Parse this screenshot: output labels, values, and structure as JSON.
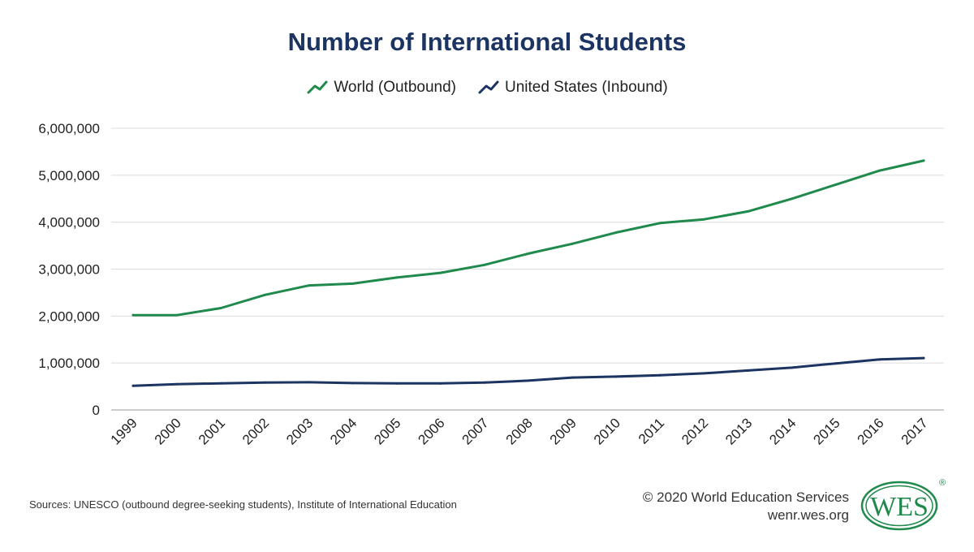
{
  "chart_data": {
    "type": "line",
    "title": "Number of International Students",
    "categories": [
      "1999",
      "2000",
      "2001",
      "2002",
      "2003",
      "2004",
      "2005",
      "2006",
      "2007",
      "2008",
      "2009",
      "2010",
      "2011",
      "2012",
      "2013",
      "2014",
      "2015",
      "2016",
      "2017"
    ],
    "series": [
      {
        "name": "World (Outbound)",
        "color": "#1f8a4c",
        "values": [
          2020000,
          2020000,
          2170000,
          2450000,
          2650000,
          2690000,
          2820000,
          2920000,
          3090000,
          3330000,
          3540000,
          3780000,
          3980000,
          4060000,
          4230000,
          4500000,
          4800000,
          5100000,
          5310000
        ]
      },
      {
        "name": "United States (Inbound)",
        "color": "#1c3461",
        "values": [
          515000,
          548000,
          567000,
          583000,
          590000,
          572000,
          565000,
          565000,
          583000,
          625000,
          690000,
          710000,
          740000,
          780000,
          840000,
          900000,
          990000,
          1075000,
          1105000
        ]
      }
    ],
    "yticks": [
      "0",
      "1,000,000",
      "2,000,000",
      "3,000,000",
      "4,000,000",
      "5,000,000",
      "6,000,000"
    ],
    "ylim": [
      0,
      6000000
    ],
    "grid": true,
    "legend_position": "top-center"
  },
  "footer": {
    "source": "Sources: UNESCO (outbound degree-seeking students), Institute of International Education",
    "copyright": "© 2020 World Education Services",
    "website": "wenr.wes.org"
  },
  "logo": {
    "text": "WES",
    "registered": "®",
    "color": "#1f8a4c"
  }
}
